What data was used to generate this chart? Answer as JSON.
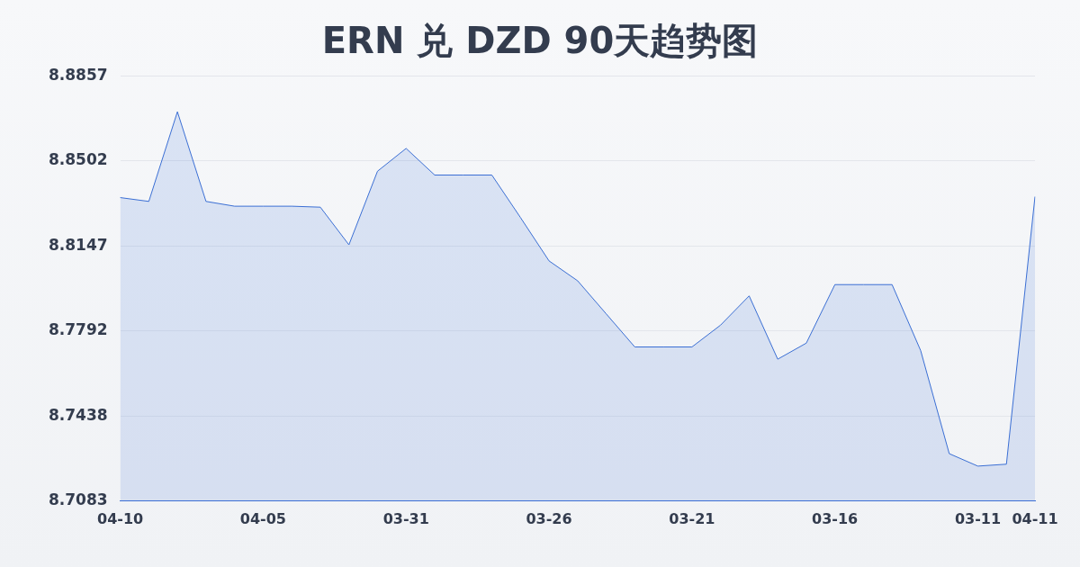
{
  "chart_data": {
    "type": "area",
    "title": "ERN 兑 DZD 90天趋势图",
    "categories": [
      "04-10",
      null,
      null,
      null,
      null,
      "04-05",
      null,
      null,
      null,
      null,
      "03-31",
      null,
      null,
      null,
      null,
      "03-26",
      null,
      null,
      null,
      null,
      "03-21",
      null,
      null,
      null,
      null,
      "03-16",
      null,
      null,
      null,
      null,
      "03-11",
      null,
      "04-11"
    ],
    "series": [
      {
        "color": "#3b6fd4",
        "values": [
          8.8349,
          8.8333,
          8.8707,
          8.8333,
          8.8313,
          8.8313,
          8.8313,
          8.8309,
          8.8152,
          8.8459,
          8.8554,
          8.8443,
          8.8443,
          8.8443,
          8.8266,
          8.8085,
          8.8002,
          8.7864,
          8.7726,
          8.7726,
          8.7726,
          8.7817,
          8.7939,
          8.7675,
          8.7742,
          8.7986,
          8.7986,
          8.7986,
          8.7711,
          8.7281,
          8.7229,
          8.7237,
          8.8353
        ]
      }
    ],
    "ylim": [
      8.7083,
      8.8857
    ],
    "yticks": [
      8.7083,
      8.7438,
      8.7792,
      8.8147,
      8.8502,
      8.8857
    ],
    "grid": "y",
    "legend": false,
    "marker": "none"
  }
}
